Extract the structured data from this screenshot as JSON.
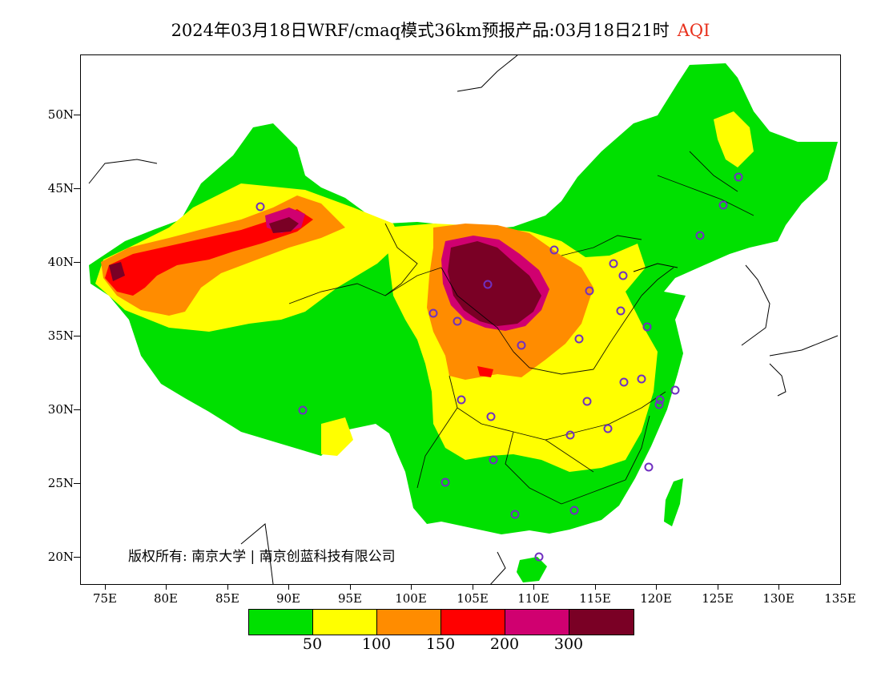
{
  "header": {
    "title": "2024年03月18日WRF/cmaq模式36km预报产品:03月18日21时",
    "product": "AQI"
  },
  "axes": {
    "lat_labels": [
      "50N",
      "45N",
      "40N",
      "35N",
      "30N",
      "25N",
      "20N"
    ],
    "lon_labels": [
      "75E",
      "80E",
      "85E",
      "90E",
      "95E",
      "100E",
      "105E",
      "110E",
      "115E",
      "120E",
      "125E",
      "130E",
      "135E"
    ]
  },
  "copyright": "版权所有: 南京大学 | 南京创蓝科技有限公司",
  "legend": {
    "colors": [
      "#00e000",
      "#ffff00",
      "#ff8c00",
      "#ff0000",
      "#d00070",
      "#7a0025"
    ],
    "labels": [
      "50",
      "100",
      "150",
      "200",
      "300"
    ]
  },
  "colors": {
    "green": "#00e000",
    "yellow": "#ffff00",
    "orange": "#ff8c00",
    "red": "#ff0000",
    "magenta": "#d00070",
    "maroon": "#7a0025",
    "station": "#7030c0"
  }
}
